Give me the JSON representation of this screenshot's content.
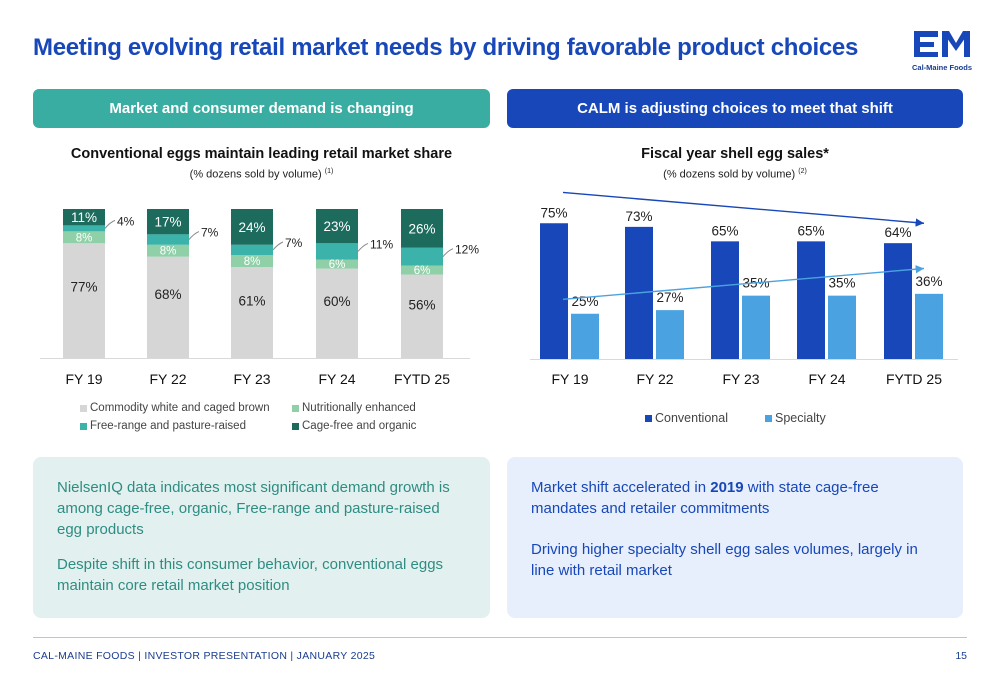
{
  "header": {
    "title": "Meeting evolving retail market needs by driving favorable product choices",
    "logo_letters": "CM",
    "logo_text": "Cal-Maine Foods"
  },
  "left": {
    "bar_label": "Market and consumer demand is changing",
    "chart_title": "Conventional eggs maintain leading retail market share",
    "chart_subtitle": "(% dozens sold by volume)",
    "chart_subtitle_note": "(1)"
  },
  "right": {
    "bar_label": "CALM is adjusting choices to meet that shift",
    "chart_title": "Fiscal year shell egg sales*",
    "chart_subtitle": "(% dozens sold by volume)",
    "chart_subtitle_note": "(2)"
  },
  "chart_data": [
    {
      "type": "bar",
      "stacked": true,
      "categories": [
        "FY 19",
        "FY 22",
        "FY 23",
        "FY 24",
        "FYTD 25"
      ],
      "series": [
        {
          "name": "Commodity white and caged brown",
          "values": [
            77,
            68,
            61,
            60,
            56
          ],
          "labels": [
            "77%",
            "68%",
            "61%",
            "60%",
            "56%"
          ],
          "color": "#d6d6d6"
        },
        {
          "name": "Nutritionally enhanced",
          "values": [
            8,
            8,
            8,
            6,
            6
          ],
          "labels": [
            "8%",
            "8%",
            "8%",
            "6%",
            "6%"
          ],
          "color": "#8fd0a9"
        },
        {
          "name": "Free-range and pasture-raised",
          "values": [
            4,
            7,
            7,
            11,
            12
          ],
          "labels": [
            "4%",
            "7%",
            "7%",
            "11%",
            "12%"
          ],
          "color": "#3bb2aa"
        },
        {
          "name": "Cage-free and organic",
          "values": [
            11,
            17,
            24,
            23,
            26
          ],
          "labels": [
            "11%",
            "17%",
            "24%",
            "23%",
            "26%"
          ],
          "color": "#1c6b5d"
        }
      ]
    },
    {
      "type": "bar",
      "categories": [
        "FY 19",
        "FY 22",
        "FY 23",
        "FY 24",
        "FYTD 25"
      ],
      "series": [
        {
          "name": "Conventional",
          "values": [
            75,
            73,
            65,
            65,
            64
          ],
          "labels": [
            "75%",
            "73%",
            "65%",
            "65%",
            "64%"
          ],
          "color": "#1747b8"
        },
        {
          "name": "Specialty",
          "values": [
            25,
            27,
            35,
            35,
            36
          ],
          "labels": [
            "25%",
            "27%",
            "35%",
            "35%",
            "36%"
          ],
          "color": "#4aa3e0"
        }
      ],
      "trend_arrows": [
        {
          "series": "Conventional",
          "direction": "down",
          "color": "#1747b8"
        },
        {
          "series": "Specialty",
          "direction": "up",
          "color": "#4aa3e0"
        }
      ]
    }
  ],
  "notes_left": [
    "NielsenIQ data indicates most significant demand growth is among cage-free, organic, Free-range and pasture-raised egg products",
    "Despite shift in this consumer behavior, conventional eggs maintain core retail market position"
  ],
  "notes_right": {
    "p1_before": "Market shift accelerated in ",
    "p1_bold": "2019",
    "p1_after": " with state cage-free mandates and retailer commitments",
    "p2": "Driving higher specialty shell egg sales volumes, largely in line with retail market"
  },
  "footer": {
    "text": "CAL-MAINE FOODS | INVESTOR PRESENTATION | JANUARY 2025",
    "page": "15"
  }
}
